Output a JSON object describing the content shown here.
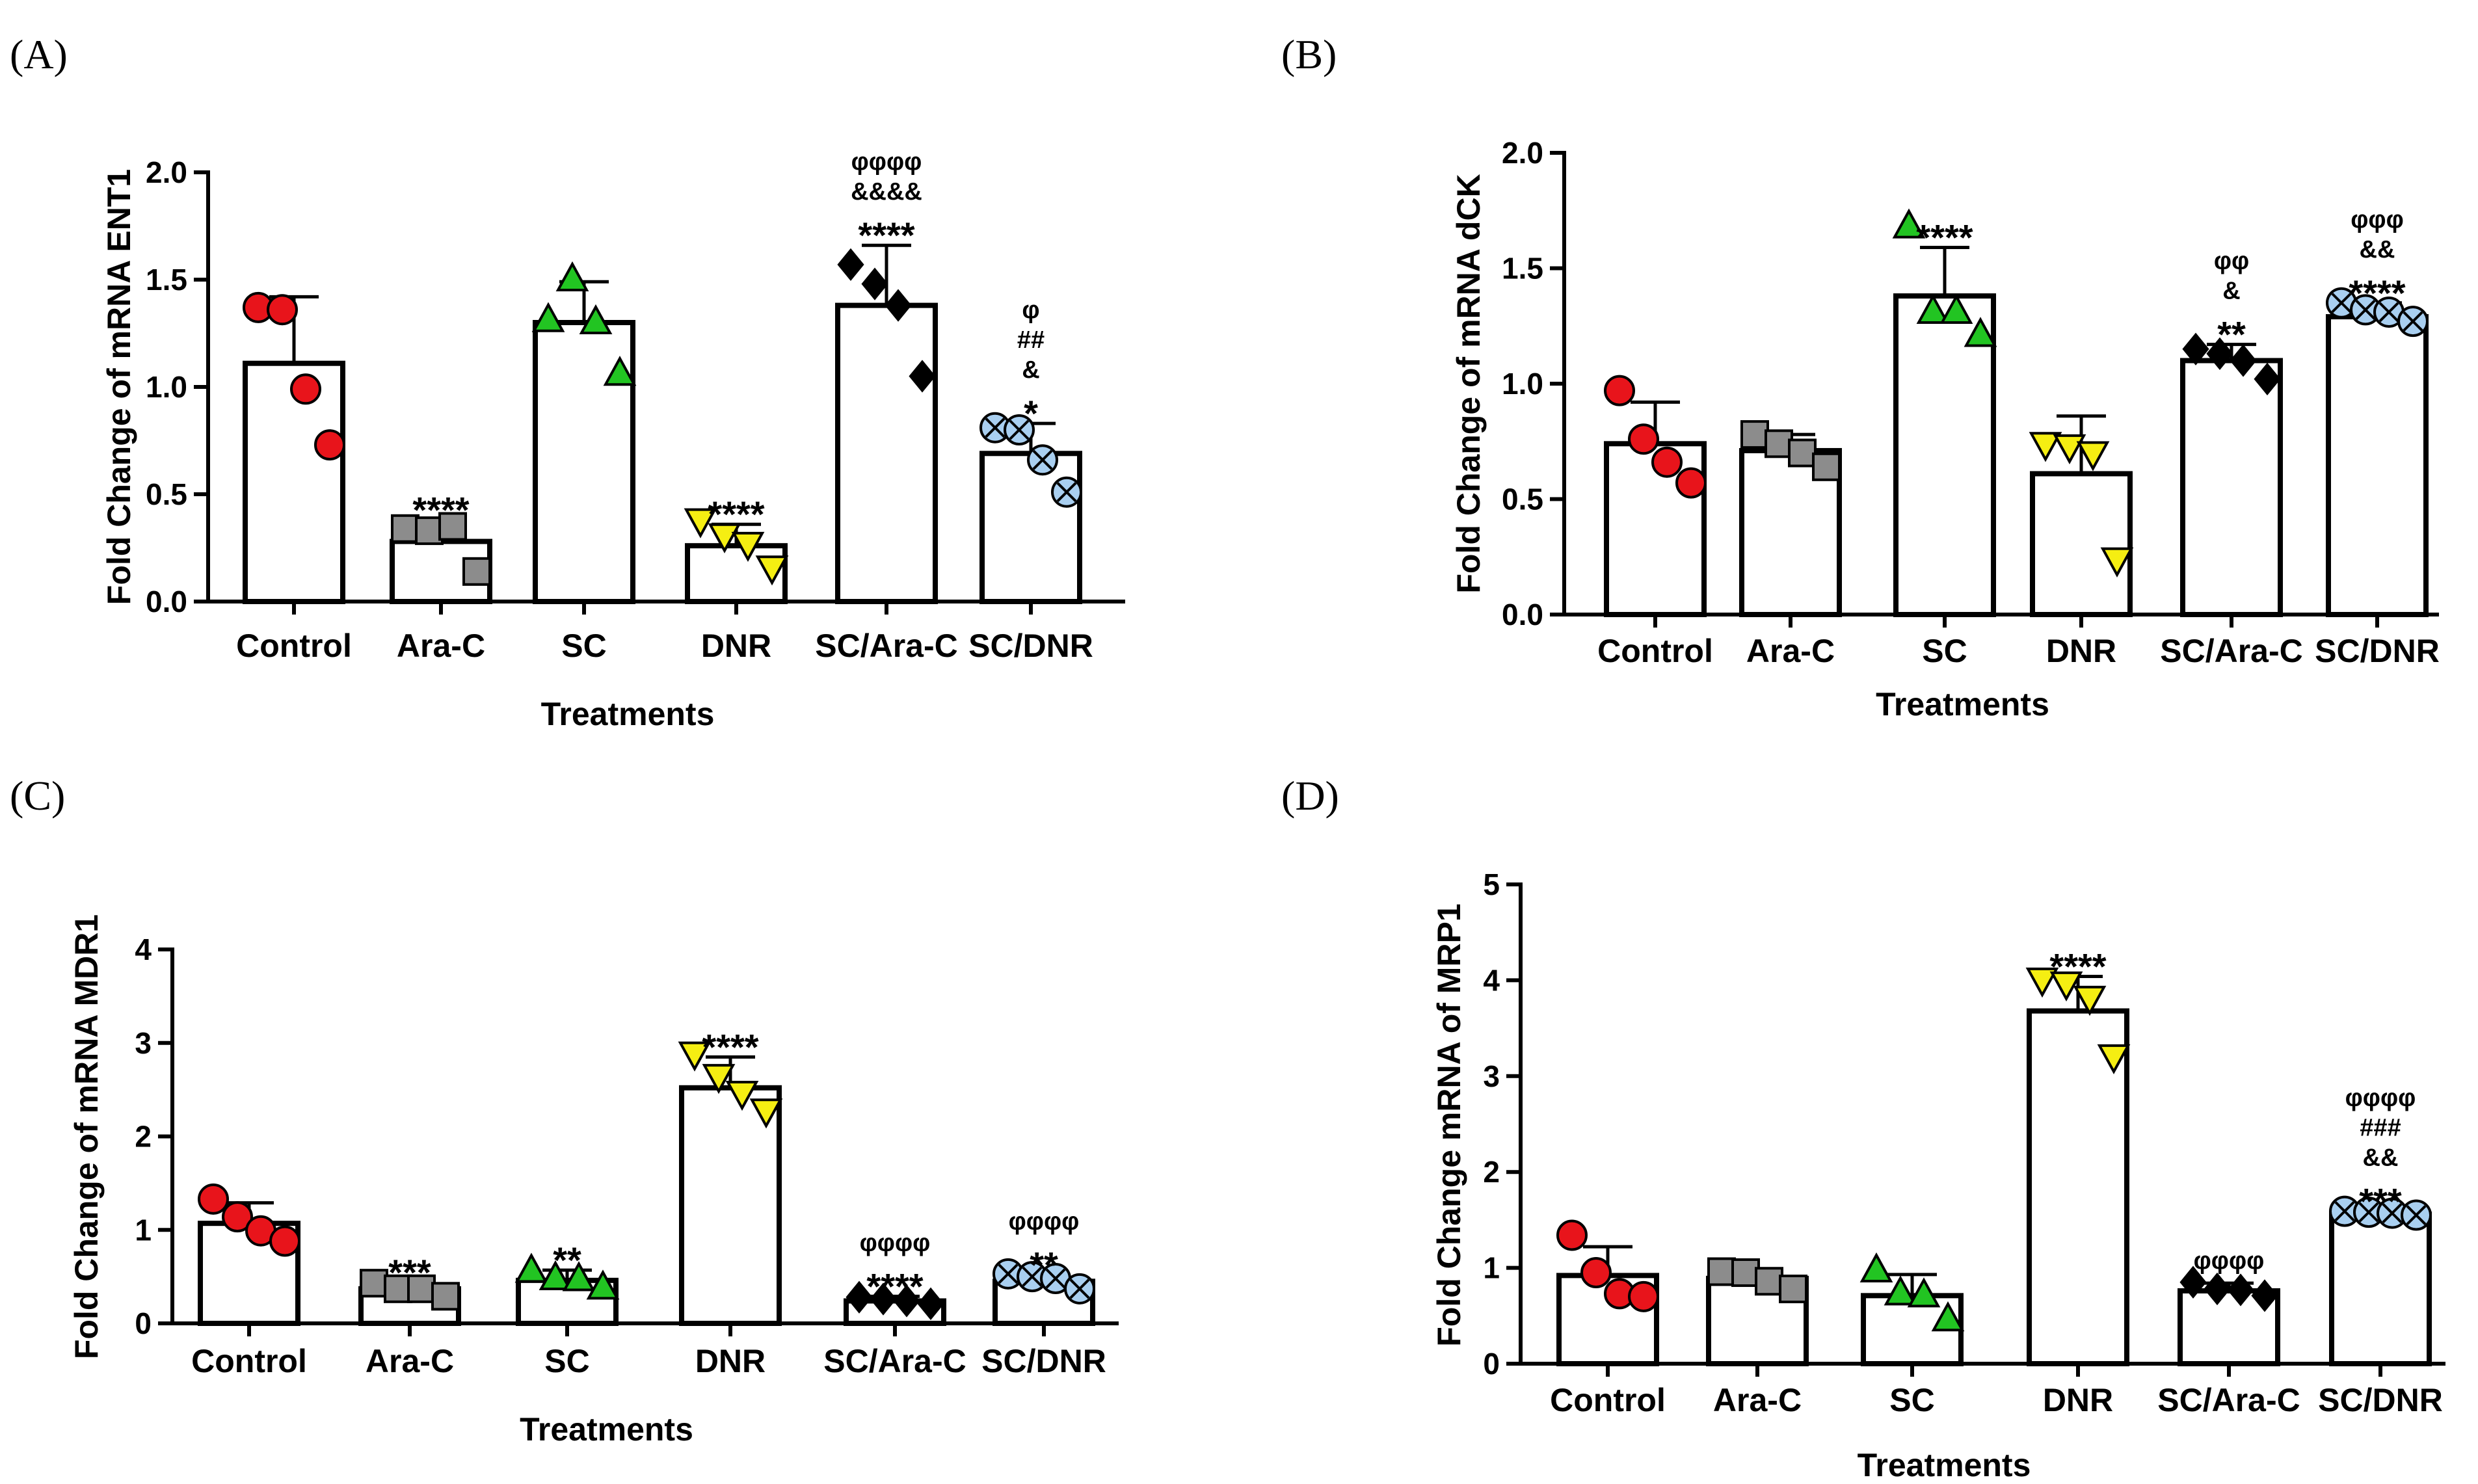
{
  "figure": {
    "colors": {
      "Control": "#e8141b",
      "Ara-C": "#8c8c8c",
      "SC": "#22c422",
      "DNR": "#f5ee12",
      "SC/Ara-C": "#000000",
      "SC/DNR": "#a9cff0"
    },
    "markers": {
      "Control": "circle",
      "Ara-C": "square",
      "SC": "triangle-up",
      "DNR": "triangle-down",
      "SC/Ara-C": "diamond",
      "SC/DNR": "circle-cross"
    }
  },
  "chart_data": [
    {
      "panel": "(A)",
      "type": "bar",
      "ylabel": "Fold Change of mRNA ENT1",
      "xlabel": "Treatments",
      "ylim": [
        0,
        2.0
      ],
      "yticks": [
        "0.0",
        "0.5",
        "1.0",
        "1.5",
        "2.0"
      ],
      "ytick_values": [
        0,
        0.5,
        1.0,
        1.5,
        2.0
      ],
      "categories": [
        "Control",
        "Ara-C",
        "SC",
        "DNR",
        "SC/Ara-C",
        "SC/DNR"
      ],
      "values": [
        1.11,
        0.28,
        1.3,
        0.26,
        1.38,
        0.69
      ],
      "error": [
        0.31,
        0.1,
        0.19,
        0.1,
        0.28,
        0.14
      ],
      "points": [
        [
          1.37,
          1.36,
          0.99,
          0.73
        ],
        [
          0.34,
          0.33,
          0.35,
          0.14
        ],
        [
          1.31,
          1.5,
          1.3,
          1.06
        ],
        [
          0.38,
          0.31,
          0.27,
          0.16
        ],
        [
          1.57,
          1.48,
          1.38,
          1.05
        ],
        [
          0.81,
          0.8,
          0.66,
          0.51
        ]
      ],
      "significance": [
        [],
        [
          "****"
        ],
        [],
        [
          "****"
        ],
        [
          "φφφφ",
          "&&&&",
          "****"
        ],
        [
          "φ",
          "##",
          "&",
          "*"
        ]
      ]
    },
    {
      "panel": "(B)",
      "type": "bar",
      "ylabel": "Fold Change of mRNA dCK",
      "xlabel": "Treatments",
      "ylim": [
        0,
        2.0
      ],
      "yticks": [
        "0.0",
        "0.5",
        "1.0",
        "1.5",
        "2.0"
      ],
      "ytick_values": [
        0,
        0.5,
        1.0,
        1.5,
        2.0
      ],
      "categories": [
        "Control",
        "Ara-C",
        "SC",
        "DNR",
        "SC/Ara-C",
        "SC/DNR"
      ],
      "values": [
        0.74,
        0.71,
        1.38,
        0.61,
        1.1,
        1.29
      ],
      "error": [
        0.18,
        0.07,
        0.21,
        0.25,
        0.07,
        0.06
      ],
      "points": [
        [
          0.97,
          0.76,
          0.66,
          0.57
        ],
        [
          0.78,
          0.74,
          0.7,
          0.64
        ],
        [
          1.68,
          1.31,
          1.31,
          1.21
        ],
        [
          0.74,
          0.73,
          0.7,
          0.24
        ],
        [
          1.15,
          1.13,
          1.1,
          1.02
        ],
        [
          1.35,
          1.32,
          1.31,
          1.27
        ]
      ],
      "significance": [
        [],
        [],
        [
          "****"
        ],
        [],
        [
          "φφ",
          "&",
          "**"
        ],
        [
          "φφφ",
          "&&",
          "****"
        ]
      ]
    },
    {
      "panel": "(C)",
      "type": "bar",
      "ylabel": "Fold Change of mRNA MDR1",
      "xlabel": "Treatments",
      "ylim": [
        0,
        4
      ],
      "yticks": [
        "0",
        "1",
        "2",
        "3",
        "4"
      ],
      "ytick_values": [
        0,
        1,
        2,
        3,
        4
      ],
      "categories": [
        "Control",
        "Ara-C",
        "SC",
        "DNR",
        "SC/Ara-C",
        "SC/DNR"
      ],
      "values": [
        1.07,
        0.37,
        0.46,
        2.52,
        0.24,
        0.45
      ],
      "error": [
        0.22,
        0.07,
        0.11,
        0.33,
        0.05,
        0.07
      ],
      "points": [
        [
          1.33,
          1.14,
          0.99,
          0.88
        ],
        [
          0.43,
          0.37,
          0.37,
          0.29
        ],
        [
          0.56,
          0.48,
          0.47,
          0.38
        ],
        [
          2.89,
          2.65,
          2.47,
          2.28
        ],
        [
          0.28,
          0.26,
          0.24,
          0.21
        ],
        [
          0.53,
          0.5,
          0.48,
          0.37
        ]
      ],
      "significance": [
        [],
        [
          "***"
        ],
        [
          "**"
        ],
        [
          "****"
        ],
        [
          "φφφφ",
          "****"
        ],
        [
          "φφφφ",
          "**"
        ]
      ]
    },
    {
      "panel": "(D)",
      "type": "bar",
      "ylabel": "Fold Change mRNA of MRP1",
      "xlabel": "Treatments",
      "ylim": [
        0,
        5
      ],
      "yticks": [
        "0",
        "1",
        "2",
        "3",
        "4",
        "5"
      ],
      "ytick_values": [
        0,
        1,
        2,
        3,
        4,
        5
      ],
      "categories": [
        "Control",
        "Ara-C",
        "SC",
        "DNR",
        "SC/Ara-C",
        "SC/DNR"
      ],
      "values": [
        0.92,
        0.89,
        0.71,
        3.68,
        0.76,
        1.56
      ],
      "error": [
        0.3,
        0.06,
        0.22,
        0.36,
        0.08,
        0.03
      ],
      "points": [
        [
          1.34,
          0.95,
          0.73,
          0.7
        ],
        [
          0.96,
          0.95,
          0.86,
          0.78
        ],
        [
          0.97,
          0.73,
          0.71,
          0.46
        ],
        [
          4.01,
          3.97,
          3.82,
          3.21
        ],
        [
          0.85,
          0.78,
          0.77,
          0.71
        ],
        [
          1.59,
          1.58,
          1.57,
          1.55
        ]
      ],
      "significance": [
        [],
        [],
        [],
        [
          "****"
        ],
        [
          "φφφφ"
        ],
        [
          "φφφφ",
          "###",
          "&&",
          "***"
        ]
      ]
    }
  ]
}
